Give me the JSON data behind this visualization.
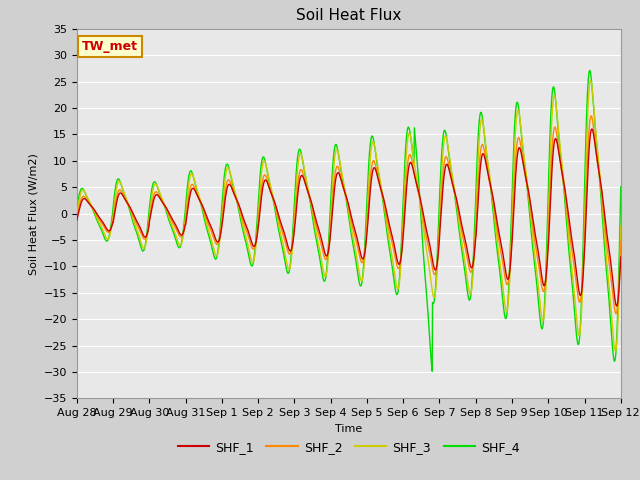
{
  "title": "Soil Heat Flux",
  "xlabel": "Time",
  "ylabel": "Soil Heat Flux (W/m2)",
  "ylim": [
    -35,
    35
  ],
  "yticks": [
    -35,
    -30,
    -25,
    -20,
    -15,
    -10,
    -5,
    0,
    5,
    10,
    15,
    20,
    25,
    30,
    35
  ],
  "xtick_labels": [
    "Aug 28",
    "Aug 29",
    "Aug 30",
    "Aug 31",
    "Sep 1",
    "Sep 2",
    "Sep 3",
    "Sep 4",
    "Sep 5",
    "Sep 6",
    "Sep 7",
    "Sep 8",
    "Sep 9",
    "Sep 10",
    "Sep 11",
    "Sep 12"
  ],
  "colors": {
    "SHF_1": "#cc0000",
    "SHF_2": "#ff8800",
    "SHF_3": "#cccc00",
    "SHF_4": "#00dd00"
  },
  "annotation_text": "TW_met",
  "annotation_color": "#cc0000",
  "annotation_bg": "#ffffcc",
  "annotation_border": "#cc8800",
  "fig_bg": "#d0d0d0",
  "plot_bg": "#e8e8e8",
  "grid_color": "#ffffff",
  "title_fontsize": 11,
  "axis_fontsize": 8,
  "legend_fontsize": 9
}
